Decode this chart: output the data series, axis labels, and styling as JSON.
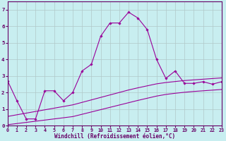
{
  "xlabel": "Windchill (Refroidissement éolien,°C)",
  "background_color": "#c8eef0",
  "grid_color": "#b0c8c8",
  "line_color": "#990099",
  "x_data": [
    0,
    1,
    2,
    3,
    4,
    5,
    6,
    7,
    8,
    9,
    10,
    11,
    12,
    13,
    14,
    15,
    16,
    17,
    18,
    19,
    20,
    21,
    22,
    23
  ],
  "y_upper": [
    2.7,
    1.5,
    0.4,
    0.4,
    2.1,
    2.1,
    1.5,
    2.0,
    3.3,
    3.7,
    5.4,
    6.2,
    6.2,
    6.85,
    6.5,
    5.8,
    4.0,
    2.85,
    3.3,
    2.55,
    2.55,
    2.65,
    2.5,
    2.65
  ],
  "y_line1": [
    0.05,
    0.12,
    0.19,
    0.26,
    0.33,
    0.4,
    0.47,
    0.54,
    0.68,
    0.82,
    0.96,
    1.1,
    1.24,
    1.38,
    1.52,
    1.65,
    1.78,
    1.88,
    1.95,
    2.01,
    2.06,
    2.1,
    2.14,
    2.18
  ],
  "y_line2": [
    0.55,
    0.65,
    0.75,
    0.85,
    0.95,
    1.05,
    1.15,
    1.25,
    1.4,
    1.55,
    1.7,
    1.85,
    2.0,
    2.15,
    2.28,
    2.4,
    2.52,
    2.6,
    2.66,
    2.72,
    2.76,
    2.8,
    2.84,
    2.88
  ],
  "xlim": [
    0,
    23
  ],
  "ylim": [
    0,
    7.5
  ],
  "yticks": [
    0,
    1,
    2,
    3,
    4,
    5,
    6,
    7
  ],
  "xticks": [
    0,
    1,
    2,
    3,
    4,
    5,
    6,
    7,
    8,
    9,
    10,
    11,
    12,
    13,
    14,
    15,
    16,
    17,
    18,
    19,
    20,
    21,
    22,
    23
  ],
  "tick_color": "#660066",
  "spine_color": "#660066",
  "label_fontsize": 5.5,
  "tick_fontsize": 4.8
}
